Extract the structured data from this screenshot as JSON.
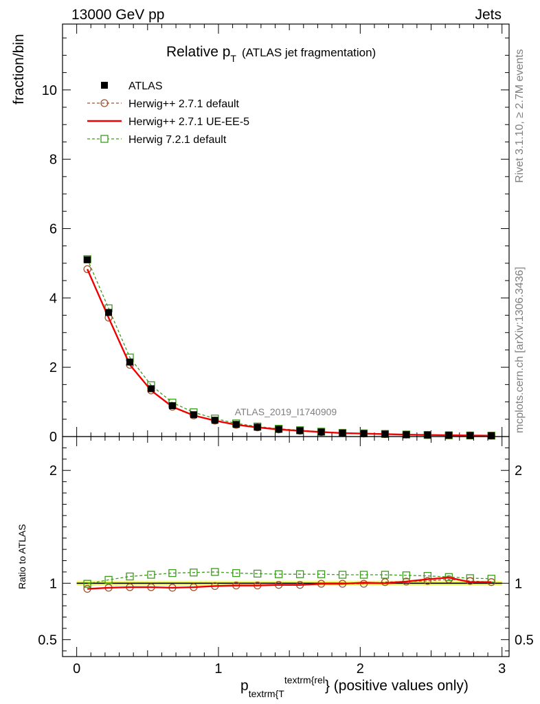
{
  "header": {
    "left": "13000 GeV pp",
    "right": "Jets"
  },
  "side_text": {
    "rivet": "Rivet 3.1.10, ≥ 2.7M events",
    "mcplots": "mcplots.cern.ch [arXiv:1306.3436]"
  },
  "chart_data": [
    {
      "type": "line",
      "title": "Relative p",
      "title_sub": "T",
      "title_extra": "(ATLAS jet fragmentation)",
      "ylabel": "fraction/bin",
      "analysis_label": "ATLAS_2019_I1740909",
      "xlim": [
        -0.1,
        3.05
      ],
      "ylim": [
        0,
        11.9
      ],
      "y_ticks": [
        0,
        2,
        4,
        6,
        8,
        10
      ],
      "y_tick_labels": [
        "0",
        "2",
        "4",
        "6",
        "8",
        "10"
      ],
      "x": [
        0.075,
        0.225,
        0.375,
        0.525,
        0.675,
        0.825,
        0.975,
        1.125,
        1.275,
        1.425,
        1.575,
        1.725,
        1.875,
        2.025,
        2.175,
        2.325,
        2.475,
        2.625,
        2.775,
        2.925
      ],
      "legend_position": "top-left",
      "series": [
        {
          "name": "ATLAS",
          "color": "#000000",
          "marker": "filled-square",
          "values": [
            5.1,
            3.58,
            2.15,
            1.38,
            0.89,
            0.63,
            0.47,
            0.35,
            0.27,
            0.21,
            0.17,
            0.13,
            0.1,
            0.085,
            0.07,
            0.055,
            0.045,
            0.037,
            0.03,
            0.025
          ]
        },
        {
          "name": "Herwig++ 2.7.1 default",
          "color": "#a0522d",
          "marker": "open-circle",
          "dash": "dashed",
          "values": [
            4.83,
            3.43,
            2.07,
            1.33,
            0.86,
            0.61,
            0.46,
            0.34,
            0.265,
            0.205,
            0.167,
            0.13,
            0.1,
            0.085,
            0.071,
            0.056,
            0.046,
            0.038,
            0.031,
            0.026
          ]
        },
        {
          "name": "Herwig++ 2.7.1 UE-EE-5",
          "color": "#ee0000",
          "marker": "none",
          "dash": "solid",
          "values": [
            4.83,
            3.43,
            2.07,
            1.33,
            0.86,
            0.61,
            0.46,
            0.34,
            0.265,
            0.205,
            0.167,
            0.13,
            0.1,
            0.085,
            0.071,
            0.056,
            0.046,
            0.038,
            0.031,
            0.026
          ]
        },
        {
          "name": "Herwig 7.2.1 default",
          "color": "#3a9a1a",
          "marker": "open-square",
          "dash": "dashed",
          "values": [
            5.12,
            3.7,
            2.28,
            1.48,
            0.98,
            0.7,
            0.52,
            0.38,
            0.29,
            0.225,
            0.183,
            0.141,
            0.108,
            0.092,
            0.076,
            0.059,
            0.047,
            0.038,
            0.031,
            0.026
          ]
        }
      ]
    },
    {
      "type": "line",
      "ylabel": "Ratio to ATLAS",
      "xlabel": "p",
      "xlabel_sub": "textrm{T",
      "xlabel_sup": "textrm{rel",
      "xlabel_tail": "} (positive values only)",
      "xlim": [
        -0.1,
        3.05
      ],
      "ylim": [
        0.35,
        2.3
      ],
      "y_ticks": [
        0.5,
        1,
        2
      ],
      "y_tick_labels": [
        "0.5",
        "1",
        "2"
      ],
      "x_ticks": [
        0,
        1,
        2,
        3
      ],
      "x_tick_labels": [
        "0",
        "1",
        "2",
        "3"
      ],
      "x": [
        0.075,
        0.225,
        0.375,
        0.525,
        0.675,
        0.825,
        0.975,
        1.125,
        1.275,
        1.425,
        1.575,
        1.725,
        1.875,
        2.025,
        2.175,
        2.325,
        2.475,
        2.625,
        2.775,
        2.925
      ],
      "band_colors": [
        "#f5ff66",
        "#7fff7f"
      ],
      "series": [
        {
          "name": "Herwig++ 2.7.1 default",
          "color": "#a0522d",
          "values": [
            0.95,
            0.96,
            0.965,
            0.965,
            0.96,
            0.965,
            0.975,
            0.98,
            0.98,
            0.985,
            0.985,
            0.995,
            0.995,
            0.995,
            1.01,
            1.015,
            1.02,
            1.035,
            1.02,
            1.01
          ]
        },
        {
          "name": "Herwig++ 2.7.1 UE-EE-5",
          "color": "#ee0000",
          "values": [
            0.95,
            0.96,
            0.965,
            0.965,
            0.96,
            0.965,
            0.975,
            0.98,
            0.98,
            0.985,
            0.985,
            0.995,
            0.995,
            1.005,
            1.0,
            1.015,
            1.035,
            1.05,
            1.01,
            1.01
          ]
        },
        {
          "name": "Herwig 7.2.1 default",
          "color": "#3a9a1a",
          "values": [
            0.995,
            1.03,
            1.06,
            1.075,
            1.09,
            1.095,
            1.1,
            1.09,
            1.085,
            1.08,
            1.08,
            1.08,
            1.075,
            1.075,
            1.075,
            1.07,
            1.065,
            1.055,
            1.045,
            1.04
          ]
        }
      ]
    }
  ]
}
